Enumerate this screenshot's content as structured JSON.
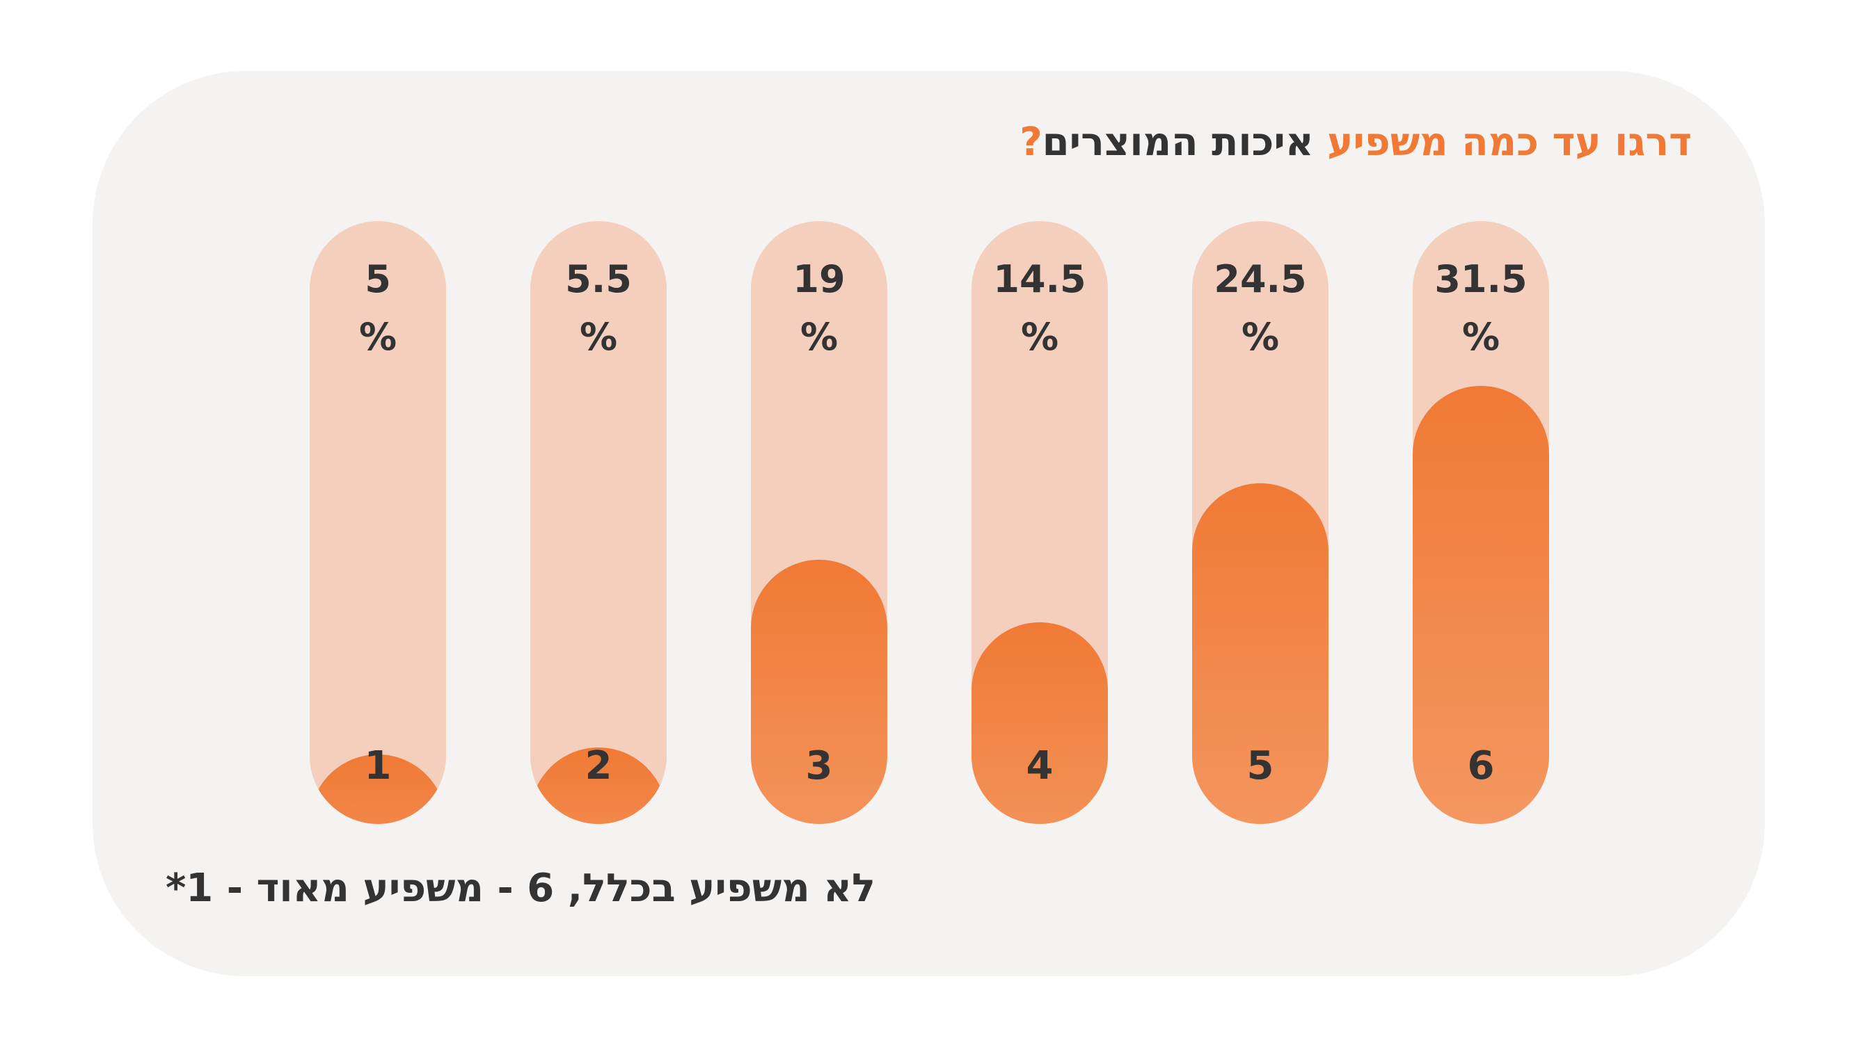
{
  "colors": {
    "background": "#f5f3f1",
    "track": "#f5cfbd",
    "fill_top": "#f07a35",
    "fill_bottom": "#f5a06e",
    "accent": "#f07a35",
    "text": "#333333"
  },
  "title": {
    "accent_part": "דרגו עד כמה משפיע",
    "rest_part": " איכות המוצרים",
    "question_mark": "?"
  },
  "footnote": "*1 - לא משפיע בכלל, 6 - משפיע מאוד",
  "chart_data": {
    "type": "bar",
    "title": "דרגו עד כמה משפיע איכות המוצרים?",
    "categories": [
      "1",
      "2",
      "3",
      "4",
      "5",
      "6"
    ],
    "values": [
      5,
      5.5,
      19,
      14.5,
      24.5,
      31.5
    ],
    "value_labels": [
      "5",
      "5.5",
      "19",
      "14.5",
      "24.5",
      "31.5"
    ],
    "unit_label": "%",
    "ylim": [
      0,
      35
    ],
    "xlabel": "",
    "ylabel": "",
    "grid": false,
    "legend": "none"
  }
}
